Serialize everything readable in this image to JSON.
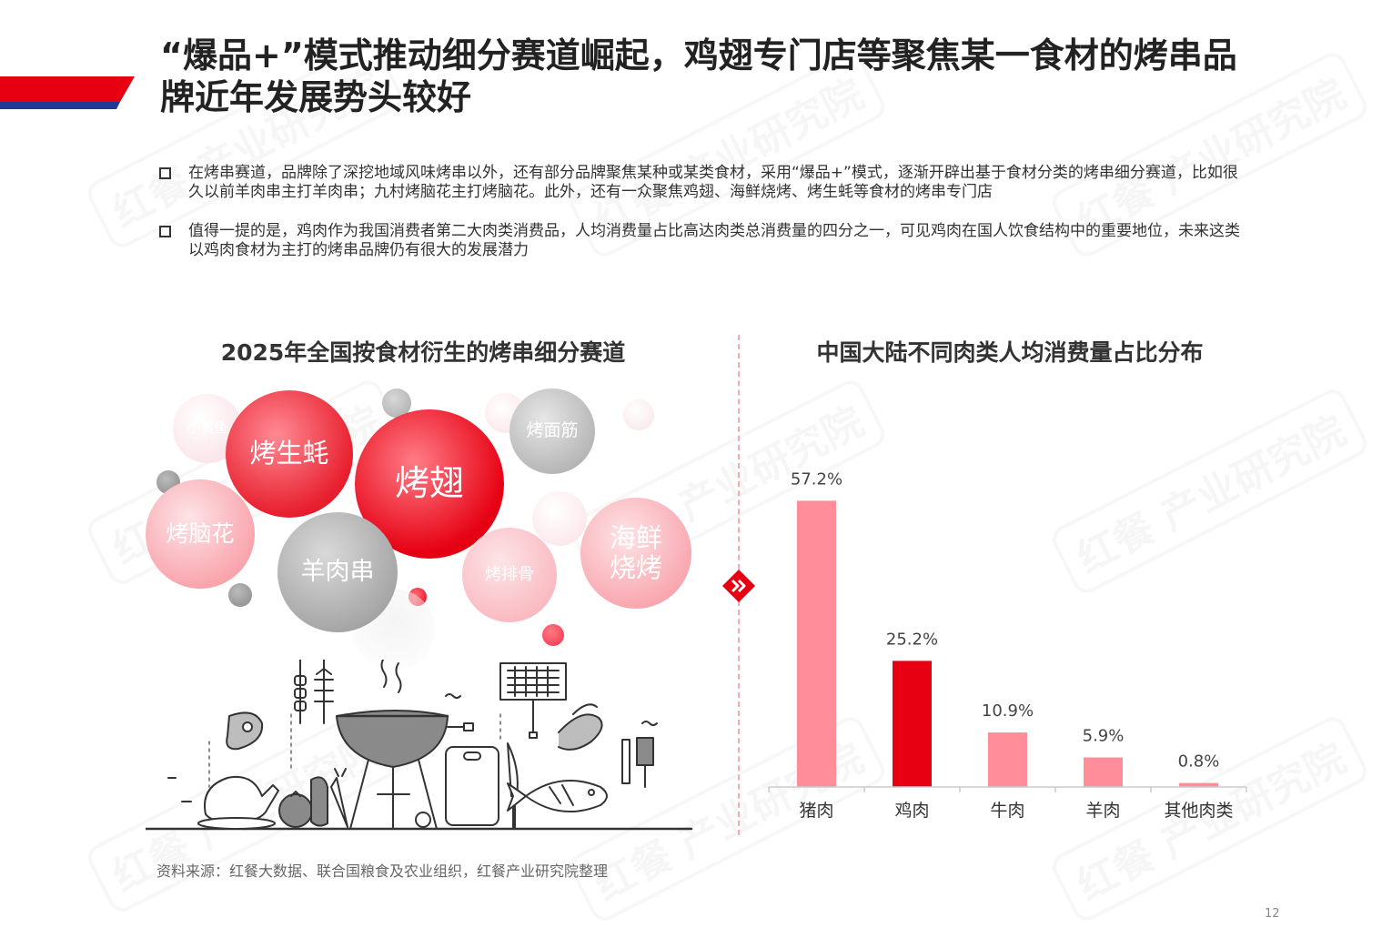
{
  "title": "“爆品+”模式推动细分赛道崛起，鸡翅专门店等聚焦某一食材的烤串品牌近年发展势头较好",
  "bullets": [
    "在烤串赛道，品牌除了深挖地域风味烤串以外，还有部分品牌聚焦某种或某类食材，采用“爆品+”模式，逐渐开辟出基于食材分类的烤串细分赛道，比如很久以前羊肉串主打羊肉串；九村烤脑花主打烤脑花。此外，还有一众聚焦鸡翅、海鲜烧烤、烤生蚝等食材的烤串专门店",
    "值得一提的是，鸡肉作为我国消费者第二大肉类消费品，人均消费量占比高达肉类总消费量的四分之一，可见鸡肉在国人饮食结构中的重要地位，未来这类以鸡肉食材为主打的烤串品牌仍有很大的发展潜力"
  ],
  "left_title": "2025年全国按食材衍生的烤串细分赛道",
  "right_title": "中国大陆不同肉类人均消费量占比分布",
  "bubbles": {
    "xiaohuangyu": "小黄鱼",
    "kaoshenghao": "烤生蚝",
    "kaochi": "烤翅",
    "kaomianjin": "烤面筋",
    "kaonaohua": "烤脑花",
    "yangrouchuan": "羊肉串",
    "kaopaigu": "烤排骨",
    "haixian_1": "海鲜",
    "haixian_2": "烧烤"
  },
  "chart_data": {
    "type": "bar",
    "title": "中国大陆不同肉类人均消费量占比分布",
    "categories": [
      "猪肉",
      "鸡肉",
      "牛肉",
      "羊肉",
      "其他肉类"
    ],
    "values": [
      57.2,
      25.2,
      10.9,
      5.9,
      0.8
    ],
    "value_labels": [
      "57.2%",
      "25.2%",
      "10.9%",
      "5.9%",
      "0.8%"
    ],
    "highlight_index": 1,
    "colors": {
      "normal": "#ff8e9a",
      "highlight": "#e60012",
      "axis": "#cccccc"
    },
    "ylim": [
      0,
      60
    ],
    "grid": false,
    "legend": "none"
  },
  "source": "资料来源：红餐大数据、联合国粮食及农业组织，红餐产业研究院整理",
  "page_number": "12",
  "watermark": "红餐 产业研究院",
  "colors": {
    "accent": "#e60012",
    "navy": "#1f3a93",
    "pink": "#f3aab5"
  }
}
